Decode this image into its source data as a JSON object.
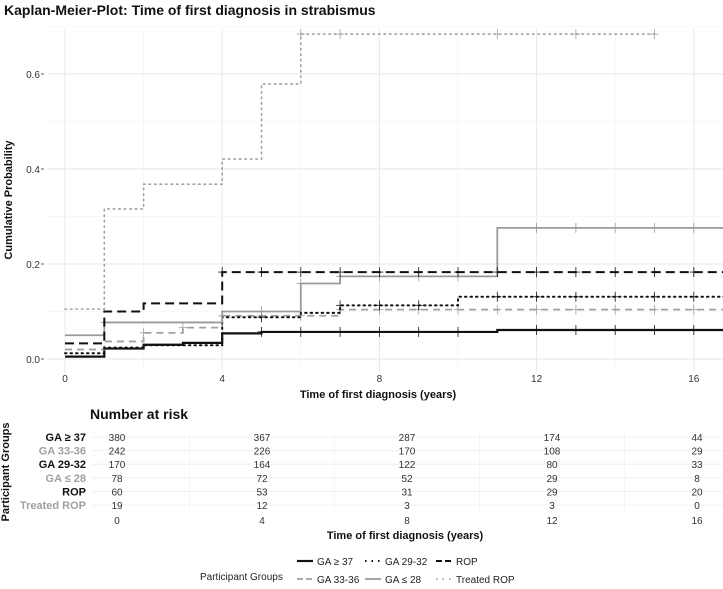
{
  "chart_data": {
    "type": "line",
    "subtype": "kaplan-meier step",
    "title": "Kaplan-Meier-Plot: Time of first diagnosis in strabismus",
    "xlabel": "Time of first diagnosis (years)",
    "ylabel": "Cumulative Probability",
    "xlim": [
      0,
      17
    ],
    "ylim": [
      0,
      0.72
    ],
    "x_ticks": [
      "0",
      "4",
      "8",
      "12",
      "16"
    ],
    "y_ticks": [
      "0.0",
      "0.2",
      "0.4",
      "0.6"
    ],
    "grid": true,
    "series": [
      {
        "name": "GA ≥ 37",
        "color": "#111111",
        "dash": "solid",
        "width": 2.2,
        "steps": [
          [
            0,
            0.005
          ],
          [
            1,
            0.022
          ],
          [
            2,
            0.03
          ],
          [
            3,
            0.034
          ],
          [
            4,
            0.054
          ],
          [
            5,
            0.057
          ],
          [
            11,
            0.061
          ]
        ],
        "end": 17,
        "censor": [
          5,
          6,
          7,
          8,
          9,
          10,
          12,
          13,
          14,
          15,
          16
        ]
      },
      {
        "name": "GA 33-36",
        "color": "#a0a0a0",
        "dash": "dashed",
        "width": 1.8,
        "steps": [
          [
            0,
            0.02
          ],
          [
            1,
            0.037
          ],
          [
            2,
            0.055
          ],
          [
            3,
            0.066
          ],
          [
            4,
            0.091
          ],
          [
            7,
            0.104
          ]
        ],
        "end": 17,
        "censor": [
          2,
          3,
          4,
          5,
          6,
          7,
          8,
          9,
          10,
          11,
          12,
          13,
          14,
          15,
          16
        ]
      },
      {
        "name": "GA 29-32",
        "color": "#111111",
        "dash": "dotted",
        "width": 2,
        "steps": [
          [
            0,
            0.012
          ],
          [
            1,
            0.024
          ],
          [
            2,
            0.029
          ],
          [
            4,
            0.088
          ],
          [
            6,
            0.097
          ],
          [
            7,
            0.113
          ],
          [
            10,
            0.131
          ]
        ],
        "end": 17,
        "censor": [
          5,
          7,
          8,
          9,
          11,
          12,
          13,
          14,
          15,
          16
        ]
      },
      {
        "name": "GA ≤ 28",
        "color": "#9a9a9a",
        "dash": "solid",
        "width": 1.8,
        "steps": [
          [
            0,
            0.05
          ],
          [
            1,
            0.077
          ],
          [
            4,
            0.1
          ],
          [
            6,
            0.159
          ],
          [
            7,
            0.174
          ],
          [
            11,
            0.276
          ]
        ],
        "end": 17,
        "censor": [
          1,
          5,
          6,
          7,
          8,
          9,
          10,
          12,
          13,
          14,
          15,
          16
        ]
      },
      {
        "name": "ROP",
        "color": "#111111",
        "dash": "longdash",
        "width": 2,
        "steps": [
          [
            0,
            0.033
          ],
          [
            1,
            0.1
          ],
          [
            2,
            0.117
          ],
          [
            4,
            0.183
          ]
        ],
        "end": 17,
        "censor": [
          4,
          5,
          6,
          7,
          8,
          9,
          10,
          11,
          12,
          13,
          14,
          15,
          16
        ]
      },
      {
        "name": "Treated ROP",
        "color": "#a0a0a0",
        "dash": "dotted",
        "width": 1.6,
        "steps": [
          [
            0,
            0.105
          ],
          [
            1,
            0.316
          ],
          [
            2,
            0.368
          ],
          [
            4,
            0.421
          ],
          [
            5,
            0.579
          ],
          [
            6,
            0.684
          ]
        ],
        "end": 15,
        "censor": [
          6,
          7,
          11,
          13,
          15
        ]
      }
    ],
    "legend": {
      "title": "Participant Groups",
      "placement": "bottom"
    },
    "risk_table": {
      "title": "Number at risk",
      "ylabel": "Participant Groups",
      "xlabel": "Time of first diagnosis (years)",
      "times": [
        "0",
        "4",
        "8",
        "12",
        "16"
      ],
      "rows": [
        {
          "label": "GA ≥ 37",
          "color": "#111111",
          "values": [
            "380",
            "367",
            "287",
            "174",
            "44"
          ]
        },
        {
          "label": "GA 33-36",
          "color": "#a0a0a0",
          "values": [
            "242",
            "226",
            "170",
            "108",
            "29"
          ]
        },
        {
          "label": "GA 29-32",
          "color": "#111111",
          "values": [
            "170",
            "164",
            "122",
            "80",
            "33"
          ]
        },
        {
          "label": "GA ≤ 28",
          "color": "#a0a0a0",
          "values": [
            "78",
            "72",
            "52",
            "29",
            "8"
          ]
        },
        {
          "label": "ROP",
          "color": "#111111",
          "values": [
            "60",
            "53",
            "31",
            "29",
            "20"
          ]
        },
        {
          "label": "Treated ROP",
          "color": "#a0a0a0",
          "values": [
            "19",
            "12",
            "3",
            "3",
            "0"
          ]
        }
      ]
    }
  }
}
